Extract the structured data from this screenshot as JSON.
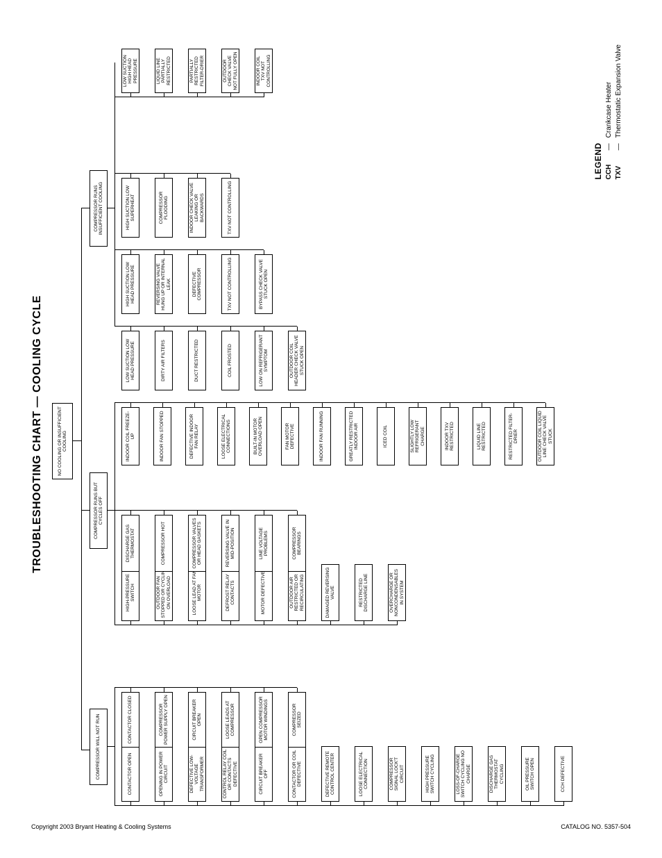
{
  "type": "flowchart",
  "title": "TROUBLESHOOTING CHART — COOLING CYCLE",
  "background_color": "#ffffff",
  "line_color": "#000000",
  "box_border": "#000000",
  "font_family": "Arial",
  "title_fontsize": 16,
  "node_fontsize": 6.5,
  "legend": {
    "heading": "LEGEND",
    "items": [
      {
        "key": "CCH",
        "sep": "—",
        "val": "Crankcase Heater"
      },
      {
        "key": "TXV",
        "sep": "—",
        "val": "Thermostatic Expansion Valve"
      }
    ]
  },
  "footer_left": "Copyright 2003 Bryant Heating & Cooling Systems",
  "footer_right": "CATALOG NO. 5357-504",
  "root": "NO COOLING OR INSUFFICIENT COOLING",
  "branches": {
    "b1": {
      "label": "COMPRESSOR WILL NOT RUN",
      "col1": [
        "CONTACTOR OPEN",
        "OPENING IN POWER CIRCUIT",
        "DEFECTIVE LOW-VOLTAGE TRANSFORMER",
        "CONTROL RELAY COIL OR CONTACTS DEFECTIVE",
        "CIRCUIT BREAKER OFF",
        "CONTACTOR OR COIL DEFECTIVE",
        "DEFECTIVE REMOTE CONTROL CENTER",
        "LOOSE ELECTRICAL CONNECTION",
        "COMPRESSOR SIGNAL LOCK'T CIRCUIT",
        "HIGH PRESSURE SWITCH CYCLING",
        "LOSS-OF-CHARGE SWITCH CYCLING NO CHARGE",
        "DISCHARGE GAS THERMOSTAT CYCLING",
        "OIL PRESSURE SWITCH OPEN",
        "CCH DEFECTIVE"
      ],
      "col2": [
        "CONTACTOR CLOSED",
        "COMPRESSOR POWER SUPPLY OPEN",
        "CIRCUIT BREAKER OPEN",
        "LOOSE LEADS AT COMPRESSOR",
        "OPEN COMPRESSOR MOTOR WINDINGS",
        "COMPRESSOR SEIZED"
      ]
    },
    "b2": {
      "label": "COMPRESSOR RUNS BUT CYCLES OFF",
      "colA": [
        "HIGH-PRESSURE SWITCH",
        "OUTDOOR FAN STOPPED OR CYCLING ON OVERLOAD",
        "LOOSE LEAD AT FAN MOTOR",
        "DEFROST RELAY CONTACTS",
        "MOTOR DEFECTIVE",
        "OUTDOOR AIR RESTRICTED OR RECIRCULATING",
        "DAMAGED REVERSING VALVE",
        "RESTRICTED DISCHARGE LINE",
        "OVERCHARGE OR NONCONDENSABLES IN SYSTEM"
      ],
      "colB": [
        "DISCHARGE GAS THERMOSTAT",
        "COMPRESSOR HOT",
        "COMPRESSOR VALVES OR HEAD GASKETS",
        "REVERSING VALVE IN MID-POSITION",
        "LINE VOLTAGE PROBLEMS",
        "COMPRESSOR BEARINGS"
      ],
      "colC": [
        "INDOOR COIL FREEZE-UP",
        "INDOOR FAN STOPPED",
        "DEFECTIVE INDOOR FAN RELAY",
        "LOOSE ELECTRICAL CONNECTIONS",
        "BUILT-IN MOTOR OVERLOAD OPEN",
        "FAN MOTOR DEFECTIVE",
        "INDOOR FAN RUNNING",
        "GREATLY RESTRICTED INDOOR AIR",
        "ICED COIL",
        "SLIGHTLY LOW REFRIGERANT CHARGE",
        "INDOOR TXV RESTRICTED",
        "LIQUID LINE RESTRICTED",
        "RESTRICTED FILTER-DRIER",
        "OUTDOOR COIL LIQUID LINE CHECK VALVE STUCK"
      ]
    },
    "b3": {
      "label": "COMPRESSOR RUNS INSUFFICIENT COOLING",
      "c1": [
        "LOW SUCTION LOW HEAD PRESSURE",
        "DIRTY AIR FILTERS",
        "DUCT RESTRICTED",
        "COIL FROSTED",
        "LOW ON REFRIGERANT SYMPTOM",
        "OUTDOOR COIL HEADER CHECK VALVE STUCK OPEN"
      ],
      "c2": [
        "HIGH SUCTION LOW HEAD PRESSURE",
        "REVERSING VALVE HUNG UP OR INTERNAL LEAK",
        "DEFECTIVE COMPRESSOR",
        "TXV NOT CONTROLLING",
        "BYPASS CHECK VALVE STUCK OPEN"
      ],
      "c3": [
        "HIGH SUCTION LOW SUPERHEAT",
        "COMPRESSOR FLOODING",
        "INDOOR CHECK VALVE LEAKING OR BACKWARDS",
        "TXV NOT CONTROLLING"
      ],
      "c4": [
        "LOW SUCTION HIGH HEAD PRESSURE",
        "LIQUID LINE PARTIALLY RESTRICTED",
        "PARTIALLY RESTRICTED FILTER-DRIER",
        "OUTDOOR CHECK VALVE NOT FULLY OPEN",
        "INDOOR COIL TXV NOT CONTROLLING"
      ]
    }
  }
}
